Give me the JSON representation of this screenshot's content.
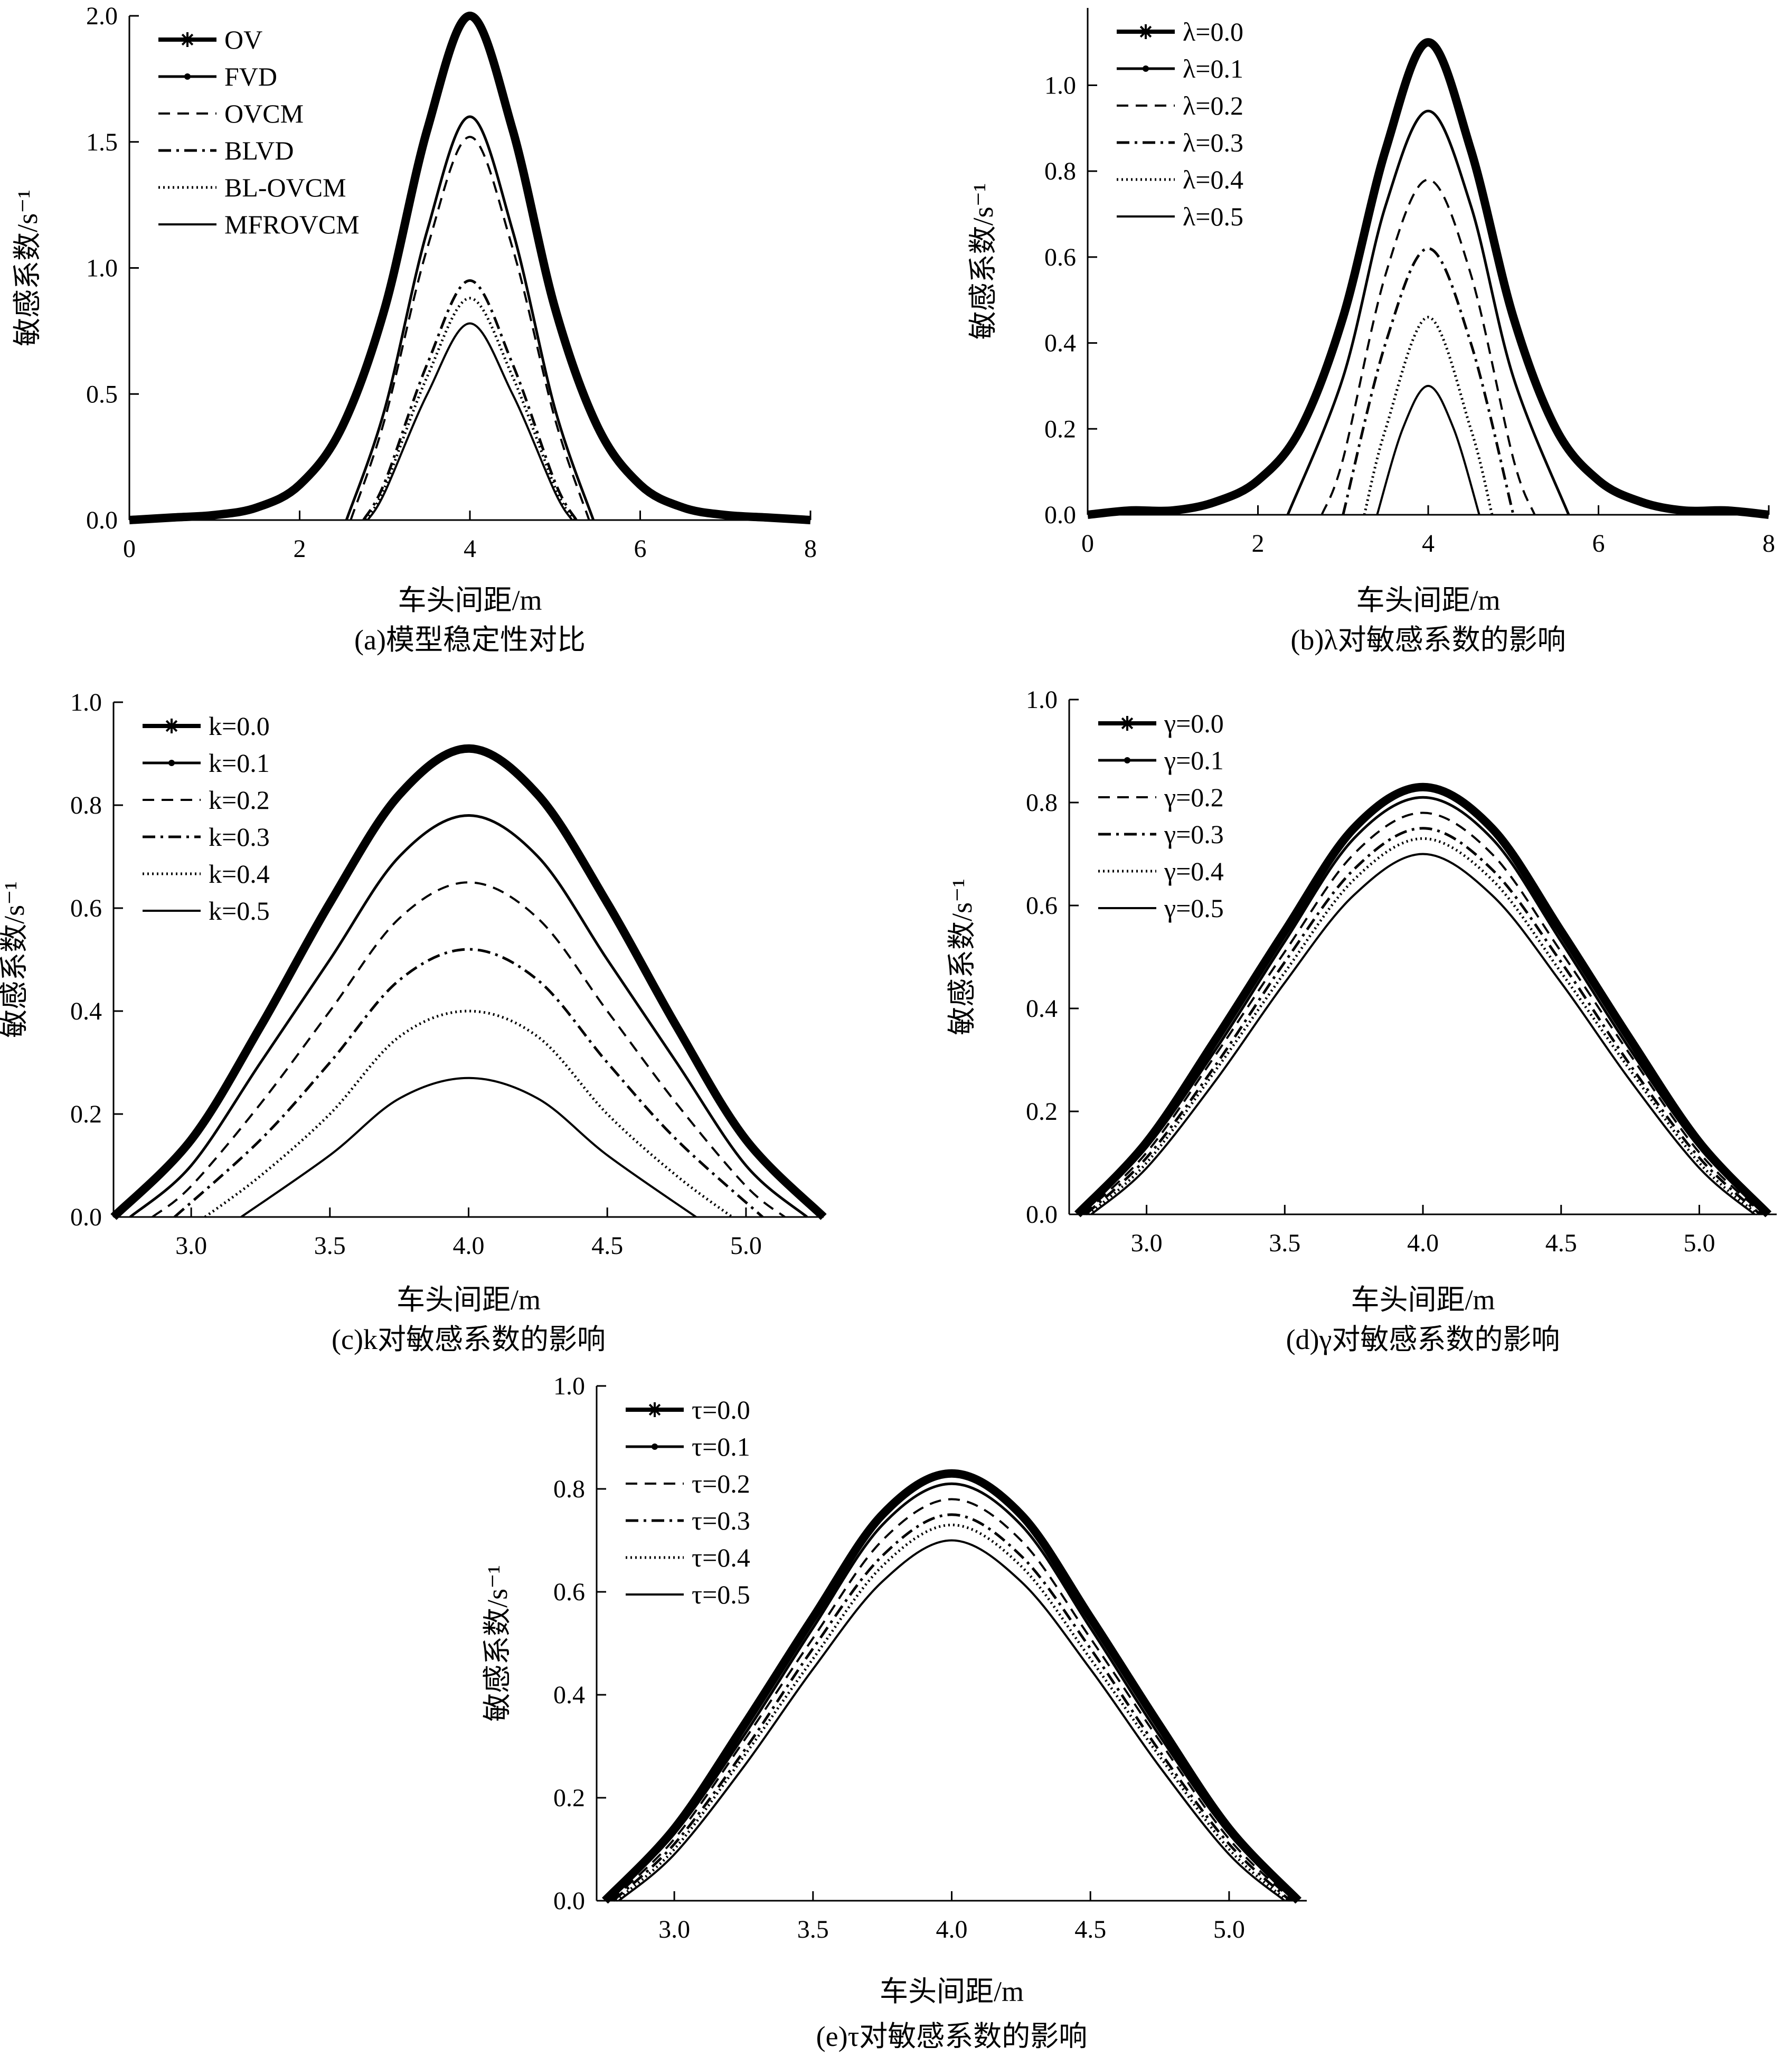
{
  "panels": [
    {
      "id": "a",
      "caption": "(a)模型稳定性对比",
      "xlabel": "车头间距/m",
      "ylabel": "敏感系数/s⁻¹",
      "legend_position": "top-left",
      "chart_data": {
        "type": "line",
        "xlim": [
          0,
          8
        ],
        "ylim": [
          0,
          2.0
        ],
        "xticks": [
          "0",
          "2",
          "4",
          "6",
          "8"
        ],
        "yticks": [
          "0.0",
          "0.5",
          "1.0",
          "1.5",
          "2.0"
        ],
        "series": [
          {
            "name": "OV",
            "style": "star",
            "peak": 2.0,
            "x": [
              0,
              0.5,
              1,
              1.5,
              2,
              2.5,
              3,
              3.5,
              4,
              4.5,
              5,
              5.5,
              6,
              6.5,
              7,
              7.5,
              8
            ],
            "y": [
              0.0,
              0.01,
              0.02,
              0.05,
              0.14,
              0.37,
              0.84,
              1.55,
              2.0,
              1.55,
              0.84,
              0.37,
              0.14,
              0.05,
              0.02,
              0.01,
              0.0
            ]
          },
          {
            "name": "FVD",
            "style": "dot",
            "peak": 1.6,
            "x": [
              2.55,
              3,
              3.5,
              4,
              4.5,
              5,
              5.45
            ],
            "y": [
              0.0,
              0.44,
              1.15,
              1.6,
              1.15,
              0.44,
              0.0
            ]
          },
          {
            "name": "OVCM",
            "style": "dash",
            "peak": 1.52,
            "x": [
              2.6,
              3,
              3.5,
              4,
              4.5,
              5,
              5.4
            ],
            "y": [
              0.0,
              0.4,
              1.08,
              1.52,
              1.08,
              0.4,
              0.0
            ]
          },
          {
            "name": "BLVD",
            "style": "dashdot",
            "peak": 0.95,
            "x": [
              2.75,
              3,
              3.5,
              4,
              4.5,
              5,
              5.25
            ],
            "y": [
              0.0,
              0.15,
              0.62,
              0.95,
              0.62,
              0.15,
              0.0
            ]
          },
          {
            "name": "BL-OVCM",
            "style": "dotted",
            "peak": 0.88,
            "x": [
              2.78,
              3,
              3.5,
              4,
              4.5,
              5,
              5.22
            ],
            "y": [
              0.0,
              0.13,
              0.57,
              0.88,
              0.57,
              0.13,
              0.0
            ]
          },
          {
            "name": "MFROVCM",
            "style": "solid",
            "peak": 0.78,
            "x": [
              2.8,
              3,
              3.5,
              4,
              4.5,
              5,
              5.2
            ],
            "y": [
              0.0,
              0.11,
              0.5,
              0.78,
              0.5,
              0.11,
              0.0
            ]
          }
        ]
      }
    },
    {
      "id": "b",
      "caption": "(b)λ对敏感系数的影响",
      "xlabel": "车头间距/m",
      "ylabel": "敏感系数/s⁻¹",
      "legend_position": "top-left",
      "chart_data": {
        "type": "line",
        "xlim": [
          0,
          8
        ],
        "ylim": [
          0,
          1.18
        ],
        "xticks": [
          "0",
          "2",
          "4",
          "6",
          "8"
        ],
        "yticks": [
          "0.0",
          "0.2",
          "0.4",
          "0.6",
          "0.8",
          "1.0"
        ],
        "series": [
          {
            "name": "λ=0.0",
            "style": "star",
            "peak": 1.1,
            "x": [
              0,
              0.5,
              1,
              1.5,
              2,
              2.5,
              3,
              3.5,
              4,
              4.5,
              5,
              5.5,
              6,
              6.5,
              7,
              7.5,
              8
            ],
            "y": [
              0.0,
              0.01,
              0.01,
              0.03,
              0.08,
              0.2,
              0.46,
              0.85,
              1.1,
              0.85,
              0.46,
              0.2,
              0.08,
              0.03,
              0.01,
              0.01,
              0.0
            ]
          },
          {
            "name": "λ=0.1",
            "style": "dot",
            "peak": 0.94,
            "x": [
              2.35,
              3,
              3.5,
              4,
              4.5,
              5,
              5.65
            ],
            "y": [
              0.0,
              0.32,
              0.72,
              0.94,
              0.72,
              0.32,
              0.0
            ]
          },
          {
            "name": "λ=0.2",
            "style": "dash",
            "peak": 0.78,
            "x": [
              2.75,
              3,
              3.5,
              4,
              4.5,
              5,
              5.25
            ],
            "y": [
              0.0,
              0.13,
              0.56,
              0.78,
              0.56,
              0.13,
              0.0
            ]
          },
          {
            "name": "λ=0.3",
            "style": "dashdot",
            "peak": 0.62,
            "x": [
              3.0,
              3.5,
              4,
              4.5,
              5.0
            ],
            "y": [
              0.0,
              0.4,
              0.62,
              0.4,
              0.0
            ]
          },
          {
            "name": "λ=0.4",
            "style": "dotted",
            "peak": 0.46,
            "x": [
              3.25,
              3.5,
              4,
              4.5,
              4.75
            ],
            "y": [
              0.0,
              0.2,
              0.46,
              0.2,
              0.0
            ]
          },
          {
            "name": "λ=0.5",
            "style": "solid",
            "peak": 0.3,
            "x": [
              3.4,
              3.7,
              4,
              4.3,
              4.6
            ],
            "y": [
              0.0,
              0.2,
              0.3,
              0.2,
              0.0
            ]
          }
        ]
      }
    },
    {
      "id": "c",
      "caption": "(c)k对敏感系数的影响",
      "xlabel": "车头间距/m",
      "ylabel": "敏感系数/s⁻¹",
      "legend_position": "top-left",
      "chart_data": {
        "type": "line",
        "xlim": [
          2.72,
          5.28
        ],
        "ylim": [
          0,
          1.0
        ],
        "xticks": [
          "3.0",
          "3.5",
          "4.0",
          "4.5",
          "5.0"
        ],
        "yticks": [
          "0.0",
          "0.2",
          "0.4",
          "0.6",
          "0.8",
          "1.0"
        ],
        "series": [
          {
            "name": "k=0.0",
            "style": "star",
            "peak": 0.91,
            "x": [
              2.72,
              3.0,
              3.25,
              3.5,
              3.75,
              4.0,
              4.25,
              4.5,
              4.75,
              5.0,
              5.28
            ],
            "y": [
              0.0,
              0.15,
              0.37,
              0.61,
              0.82,
              0.91,
              0.82,
              0.61,
              0.37,
              0.15,
              0.0
            ]
          },
          {
            "name": "k=0.1",
            "style": "dot",
            "peak": 0.78,
            "x": [
              2.78,
              3.0,
              3.25,
              3.5,
              3.75,
              4.0,
              4.25,
              4.5,
              4.75,
              5.0,
              5.22
            ],
            "y": [
              0.0,
              0.1,
              0.3,
              0.5,
              0.7,
              0.78,
              0.7,
              0.5,
              0.3,
              0.1,
              0.0
            ]
          },
          {
            "name": "k=0.2",
            "style": "dash",
            "peak": 0.65,
            "x": [
              2.86,
              3.0,
              3.25,
              3.5,
              3.75,
              4.0,
              4.25,
              4.5,
              4.75,
              5.0,
              5.14
            ],
            "y": [
              0.0,
              0.06,
              0.22,
              0.4,
              0.58,
              0.65,
              0.58,
              0.4,
              0.22,
              0.06,
              0.0
            ]
          },
          {
            "name": "k=0.3",
            "style": "dashdot",
            "peak": 0.52,
            "x": [
              2.94,
              3.25,
              3.5,
              3.75,
              4.0,
              4.25,
              4.5,
              4.75,
              5.06
            ],
            "y": [
              0.0,
              0.15,
              0.3,
              0.46,
              0.52,
              0.46,
              0.3,
              0.15,
              0.0
            ]
          },
          {
            "name": "k=0.4",
            "style": "dotted",
            "peak": 0.4,
            "x": [
              3.05,
              3.25,
              3.5,
              3.75,
              4.0,
              4.25,
              4.5,
              4.75,
              4.95
            ],
            "y": [
              0.0,
              0.08,
              0.2,
              0.35,
              0.4,
              0.35,
              0.2,
              0.08,
              0.0
            ]
          },
          {
            "name": "k=0.5",
            "style": "solid",
            "peak": 0.27,
            "x": [
              3.18,
              3.5,
              3.75,
              4.0,
              4.25,
              4.5,
              4.82
            ],
            "y": [
              0.0,
              0.12,
              0.23,
              0.27,
              0.23,
              0.12,
              0.0
            ]
          }
        ]
      }
    },
    {
      "id": "d",
      "caption": "(d)γ对敏感系数的影响",
      "xlabel": "车头间距/m",
      "ylabel": "敏感系数/s⁻¹",
      "legend_position": "top-left",
      "chart_data": {
        "type": "line",
        "xlim": [
          2.72,
          5.28
        ],
        "ylim": [
          0,
          1.0
        ],
        "xticks": [
          "3.0",
          "3.5",
          "4.0",
          "4.5",
          "5.0"
        ],
        "yticks": [
          "0.0",
          "0.2",
          "0.4",
          "0.6",
          "0.8",
          "1.0"
        ],
        "series": [
          {
            "name": "γ=0.0",
            "style": "star",
            "peak": 0.83,
            "x": [
              2.75,
              3.0,
              3.25,
              3.5,
              3.75,
              4.0,
              4.25,
              4.5,
              4.75,
              5.0,
              5.25
            ],
            "y": [
              0.0,
              0.14,
              0.34,
              0.55,
              0.75,
              0.83,
              0.75,
              0.55,
              0.34,
              0.14,
              0.0
            ]
          },
          {
            "name": "γ=0.1",
            "style": "dot",
            "peak": 0.81,
            "x": [
              2.76,
              3.0,
              3.25,
              3.5,
              3.75,
              4.0,
              4.25,
              4.5,
              4.75,
              5.0,
              5.24
            ],
            "y": [
              0.0,
              0.13,
              0.32,
              0.53,
              0.73,
              0.81,
              0.73,
              0.53,
              0.32,
              0.13,
              0.0
            ]
          },
          {
            "name": "γ=0.2",
            "style": "dash",
            "peak": 0.78,
            "x": [
              2.77,
              3.0,
              3.25,
              3.5,
              3.75,
              4.0,
              4.25,
              4.5,
              4.75,
              5.0,
              5.23
            ],
            "y": [
              0.0,
              0.12,
              0.31,
              0.51,
              0.7,
              0.78,
              0.7,
              0.51,
              0.31,
              0.12,
              0.0
            ]
          },
          {
            "name": "γ=0.3",
            "style": "dashdot",
            "peak": 0.75,
            "x": [
              2.78,
              3.0,
              3.25,
              3.5,
              3.75,
              4.0,
              4.25,
              4.5,
              4.75,
              5.0,
              5.22
            ],
            "y": [
              0.0,
              0.11,
              0.29,
              0.49,
              0.67,
              0.75,
              0.67,
              0.49,
              0.29,
              0.11,
              0.0
            ]
          },
          {
            "name": "γ=0.4",
            "style": "dotted",
            "peak": 0.73,
            "x": [
              2.79,
              3.0,
              3.25,
              3.5,
              3.75,
              4.0,
              4.25,
              4.5,
              4.75,
              5.0,
              5.21
            ],
            "y": [
              0.0,
              0.1,
              0.28,
              0.47,
              0.65,
              0.73,
              0.65,
              0.47,
              0.28,
              0.1,
              0.0
            ]
          },
          {
            "name": "γ=0.5",
            "style": "solid",
            "peak": 0.7,
            "x": [
              2.8,
              3.0,
              3.25,
              3.5,
              3.75,
              4.0,
              4.25,
              4.5,
              4.75,
              5.0,
              5.2
            ],
            "y": [
              0.0,
              0.09,
              0.26,
              0.45,
              0.62,
              0.7,
              0.62,
              0.45,
              0.26,
              0.09,
              0.0
            ]
          }
        ]
      }
    },
    {
      "id": "e",
      "caption": "(e)τ对敏感系数的影响",
      "xlabel": "车头间距/m",
      "ylabel": "敏感系数/s⁻¹",
      "legend_position": "top-left",
      "chart_data": {
        "type": "line",
        "xlim": [
          2.72,
          5.28
        ],
        "ylim": [
          0,
          1.0
        ],
        "xticks": [
          "3.0",
          "3.5",
          "4.0",
          "4.5",
          "5.0"
        ],
        "yticks": [
          "0.0",
          "0.2",
          "0.4",
          "0.6",
          "0.8",
          "1.0"
        ],
        "series": [
          {
            "name": "τ=0.0",
            "style": "star",
            "peak": 0.83,
            "x": [
              2.75,
              3.0,
              3.25,
              3.5,
              3.75,
              4.0,
              4.25,
              4.5,
              4.75,
              5.0,
              5.25
            ],
            "y": [
              0.0,
              0.14,
              0.34,
              0.55,
              0.75,
              0.83,
              0.75,
              0.55,
              0.34,
              0.14,
              0.0
            ]
          },
          {
            "name": "τ=0.1",
            "style": "dot",
            "peak": 0.81,
            "x": [
              2.76,
              3.0,
              3.25,
              3.5,
              3.75,
              4.0,
              4.25,
              4.5,
              4.75,
              5.0,
              5.24
            ],
            "y": [
              0.0,
              0.13,
              0.32,
              0.53,
              0.73,
              0.81,
              0.73,
              0.53,
              0.32,
              0.13,
              0.0
            ]
          },
          {
            "name": "τ=0.2",
            "style": "dash",
            "peak": 0.78,
            "x": [
              2.77,
              3.0,
              3.25,
              3.5,
              3.75,
              4.0,
              4.25,
              4.5,
              4.75,
              5.0,
              5.23
            ],
            "y": [
              0.0,
              0.12,
              0.31,
              0.51,
              0.7,
              0.78,
              0.7,
              0.51,
              0.31,
              0.12,
              0.0
            ]
          },
          {
            "name": "τ=0.3",
            "style": "dashdot",
            "peak": 0.75,
            "x": [
              2.78,
              3.0,
              3.25,
              3.5,
              3.75,
              4.0,
              4.25,
              4.5,
              4.75,
              5.0,
              5.22
            ],
            "y": [
              0.0,
              0.11,
              0.29,
              0.49,
              0.67,
              0.75,
              0.67,
              0.49,
              0.29,
              0.11,
              0.0
            ]
          },
          {
            "name": "τ=0.4",
            "style": "dotted",
            "peak": 0.73,
            "x": [
              2.79,
              3.0,
              3.25,
              3.5,
              3.75,
              4.0,
              4.25,
              4.5,
              4.75,
              5.0,
              5.21
            ],
            "y": [
              0.0,
              0.1,
              0.28,
              0.47,
              0.65,
              0.73,
              0.65,
              0.47,
              0.28,
              0.1,
              0.0
            ]
          },
          {
            "name": "τ=0.5",
            "style": "solid",
            "peak": 0.7,
            "x": [
              2.8,
              3.0,
              3.25,
              3.5,
              3.75,
              4.0,
              4.25,
              4.5,
              4.75,
              5.0,
              5.2
            ],
            "y": [
              0.0,
              0.09,
              0.26,
              0.45,
              0.62,
              0.7,
              0.62,
              0.45,
              0.26,
              0.09,
              0.0
            ]
          }
        ]
      }
    }
  ]
}
